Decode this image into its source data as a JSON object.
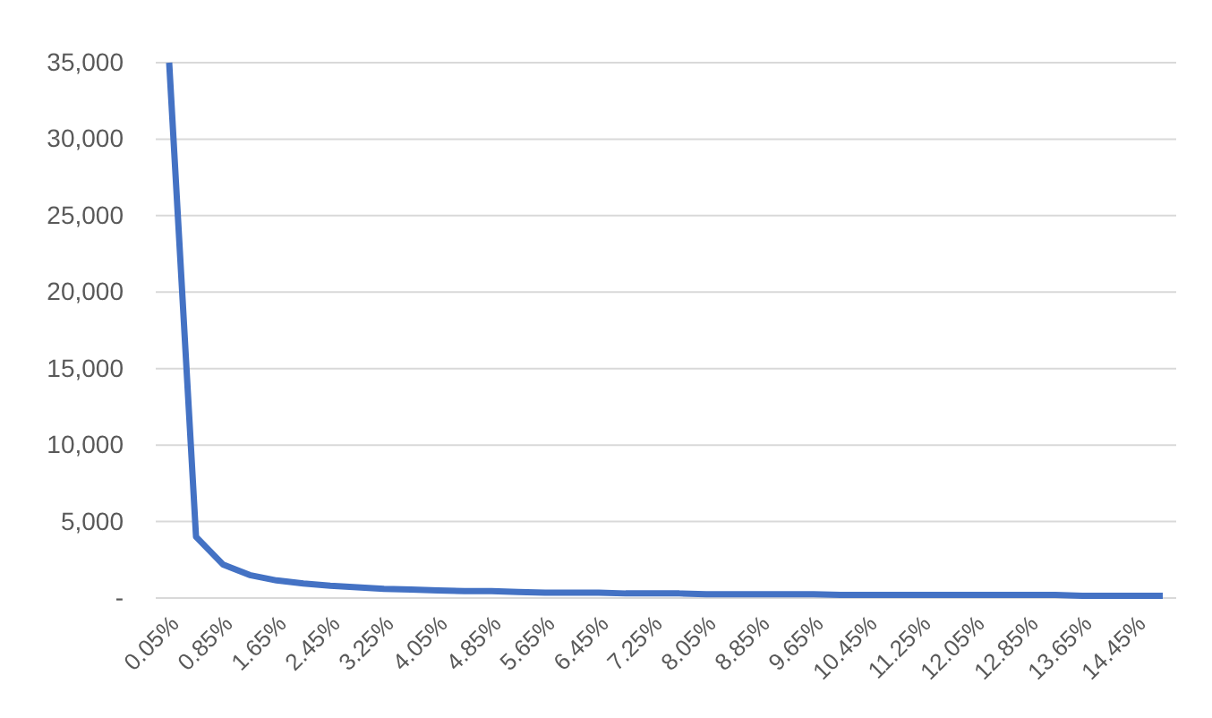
{
  "chart_data": {
    "type": "line",
    "categories": [
      "0.05%",
      null,
      "0.85%",
      null,
      "1.65%",
      null,
      "2.45%",
      null,
      "3.25%",
      null,
      "4.05%",
      null,
      "4.85%",
      null,
      "5.65%",
      null,
      "6.45%",
      null,
      "7.25%",
      null,
      "8.05%",
      null,
      "8.85%",
      null,
      "9.65%",
      null,
      "10.45%",
      null,
      "11.25%",
      null,
      "12.05%",
      null,
      "12.85%",
      null,
      "13.65%",
      null,
      "14.45%",
      null
    ],
    "series": [
      {
        "color": "#4472c4",
        "values": [
          35000,
          4000,
          2200,
          1500,
          1150,
          950,
          800,
          700,
          600,
          550,
          500,
          450,
          450,
          400,
          350,
          350,
          350,
          300,
          300,
          300,
          250,
          250,
          250,
          250,
          250,
          200,
          200,
          200,
          200,
          200,
          200,
          200,
          200,
          200,
          150,
          150,
          150,
          150
        ]
      }
    ],
    "ylim": [
      0,
      35000
    ],
    "yticks": [
      {
        "value": 0,
        "label": "-"
      },
      {
        "value": 5000,
        "label": "5,000"
      },
      {
        "value": 10000,
        "label": "10,000"
      },
      {
        "value": 15000,
        "label": "15,000"
      },
      {
        "value": 20000,
        "label": "20,000"
      },
      {
        "value": 25000,
        "label": "25,000"
      },
      {
        "value": 30000,
        "label": "30,000"
      },
      {
        "value": 35000,
        "label": "35,000"
      }
    ],
    "grid": "y",
    "marker": "none",
    "line_style": "solid"
  }
}
